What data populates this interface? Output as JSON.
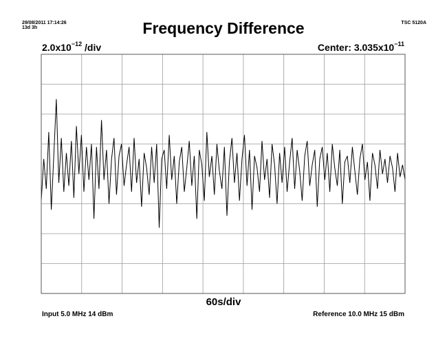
{
  "header": {
    "datetime": "29/08/2011 17:14:26",
    "elapsed": "13d 3h",
    "instrument": "TSC 5120A"
  },
  "chart_data": {
    "type": "line",
    "title": "Frequency Difference",
    "y_scale_base": "2.0x10",
    "y_scale_exp": "−12",
    "y_scale_unit": " /div",
    "center_label": "Center: 3.035x10",
    "center_exp": "−11",
    "x_scale": "60s/div",
    "x_divisions": 9,
    "y_divisions": 8,
    "grid": true,
    "series": [
      {
        "values": [
          -0.9,
          0.5,
          -0.5,
          1.4,
          -1.2,
          0.6,
          2.5,
          -0.3,
          1.2,
          -0.6,
          0.7,
          -0.4,
          1.1,
          -0.8,
          1.6,
          0.0,
          1.3,
          -0.6,
          0.9,
          -0.2,
          1.0,
          -1.5,
          0.9,
          -0.5,
          1.8,
          -0.2,
          0.8,
          -1.0,
          0.5,
          1.2,
          -0.7,
          0.6,
          1.0,
          -0.4,
          0.3,
          0.9,
          -0.6,
          1.2,
          -0.3,
          0.5,
          -1.1,
          0.7,
          0.2,
          -0.7,
          0.9,
          -0.3,
          1.0,
          -1.8,
          0.5,
          0.8,
          -0.5,
          1.3,
          -0.2,
          0.6,
          -1.0,
          0.4,
          0.9,
          -0.6,
          0.2,
          1.1,
          -0.4,
          0.6,
          -1.5,
          0.8,
          0.3,
          -0.9,
          1.4,
          -0.1,
          0.6,
          -0.7,
          1.0,
          0.1,
          -0.5,
          0.9,
          -1.4,
          0.4,
          1.2,
          -0.3,
          0.7,
          -0.9,
          0.5,
          1.3,
          -0.4,
          0.8,
          -1.2,
          0.6,
          0.2,
          -0.6,
          1.1,
          -0.2,
          0.5,
          -0.8,
          1.0,
          0.3,
          -1.0,
          0.7,
          -0.3,
          0.9,
          -0.6,
          0.4,
          1.2,
          -0.5,
          0.8,
          0.1,
          -0.9,
          0.6,
          1.1,
          -0.4,
          0.3,
          0.8,
          -1.1,
          0.5,
          0.9,
          -0.2,
          0.7,
          -0.6,
          1.0,
          0.2,
          -0.4,
          0.8,
          -1.0,
          0.4,
          0.6,
          -0.3,
          0.9,
          0.1,
          -0.7,
          0.5,
          1.0,
          -0.2,
          0.4,
          -0.9,
          0.7,
          0.3,
          -0.5,
          0.8,
          0.0,
          0.5,
          -0.3,
          0.6,
          0.2,
          -0.6,
          0.7,
          -0.1,
          0.3,
          -0.2
        ]
      }
    ]
  },
  "footer": {
    "input": "Input 5.0 MHz 14 dBm",
    "reference": "Reference 10.0 MHz 15 dBm"
  }
}
